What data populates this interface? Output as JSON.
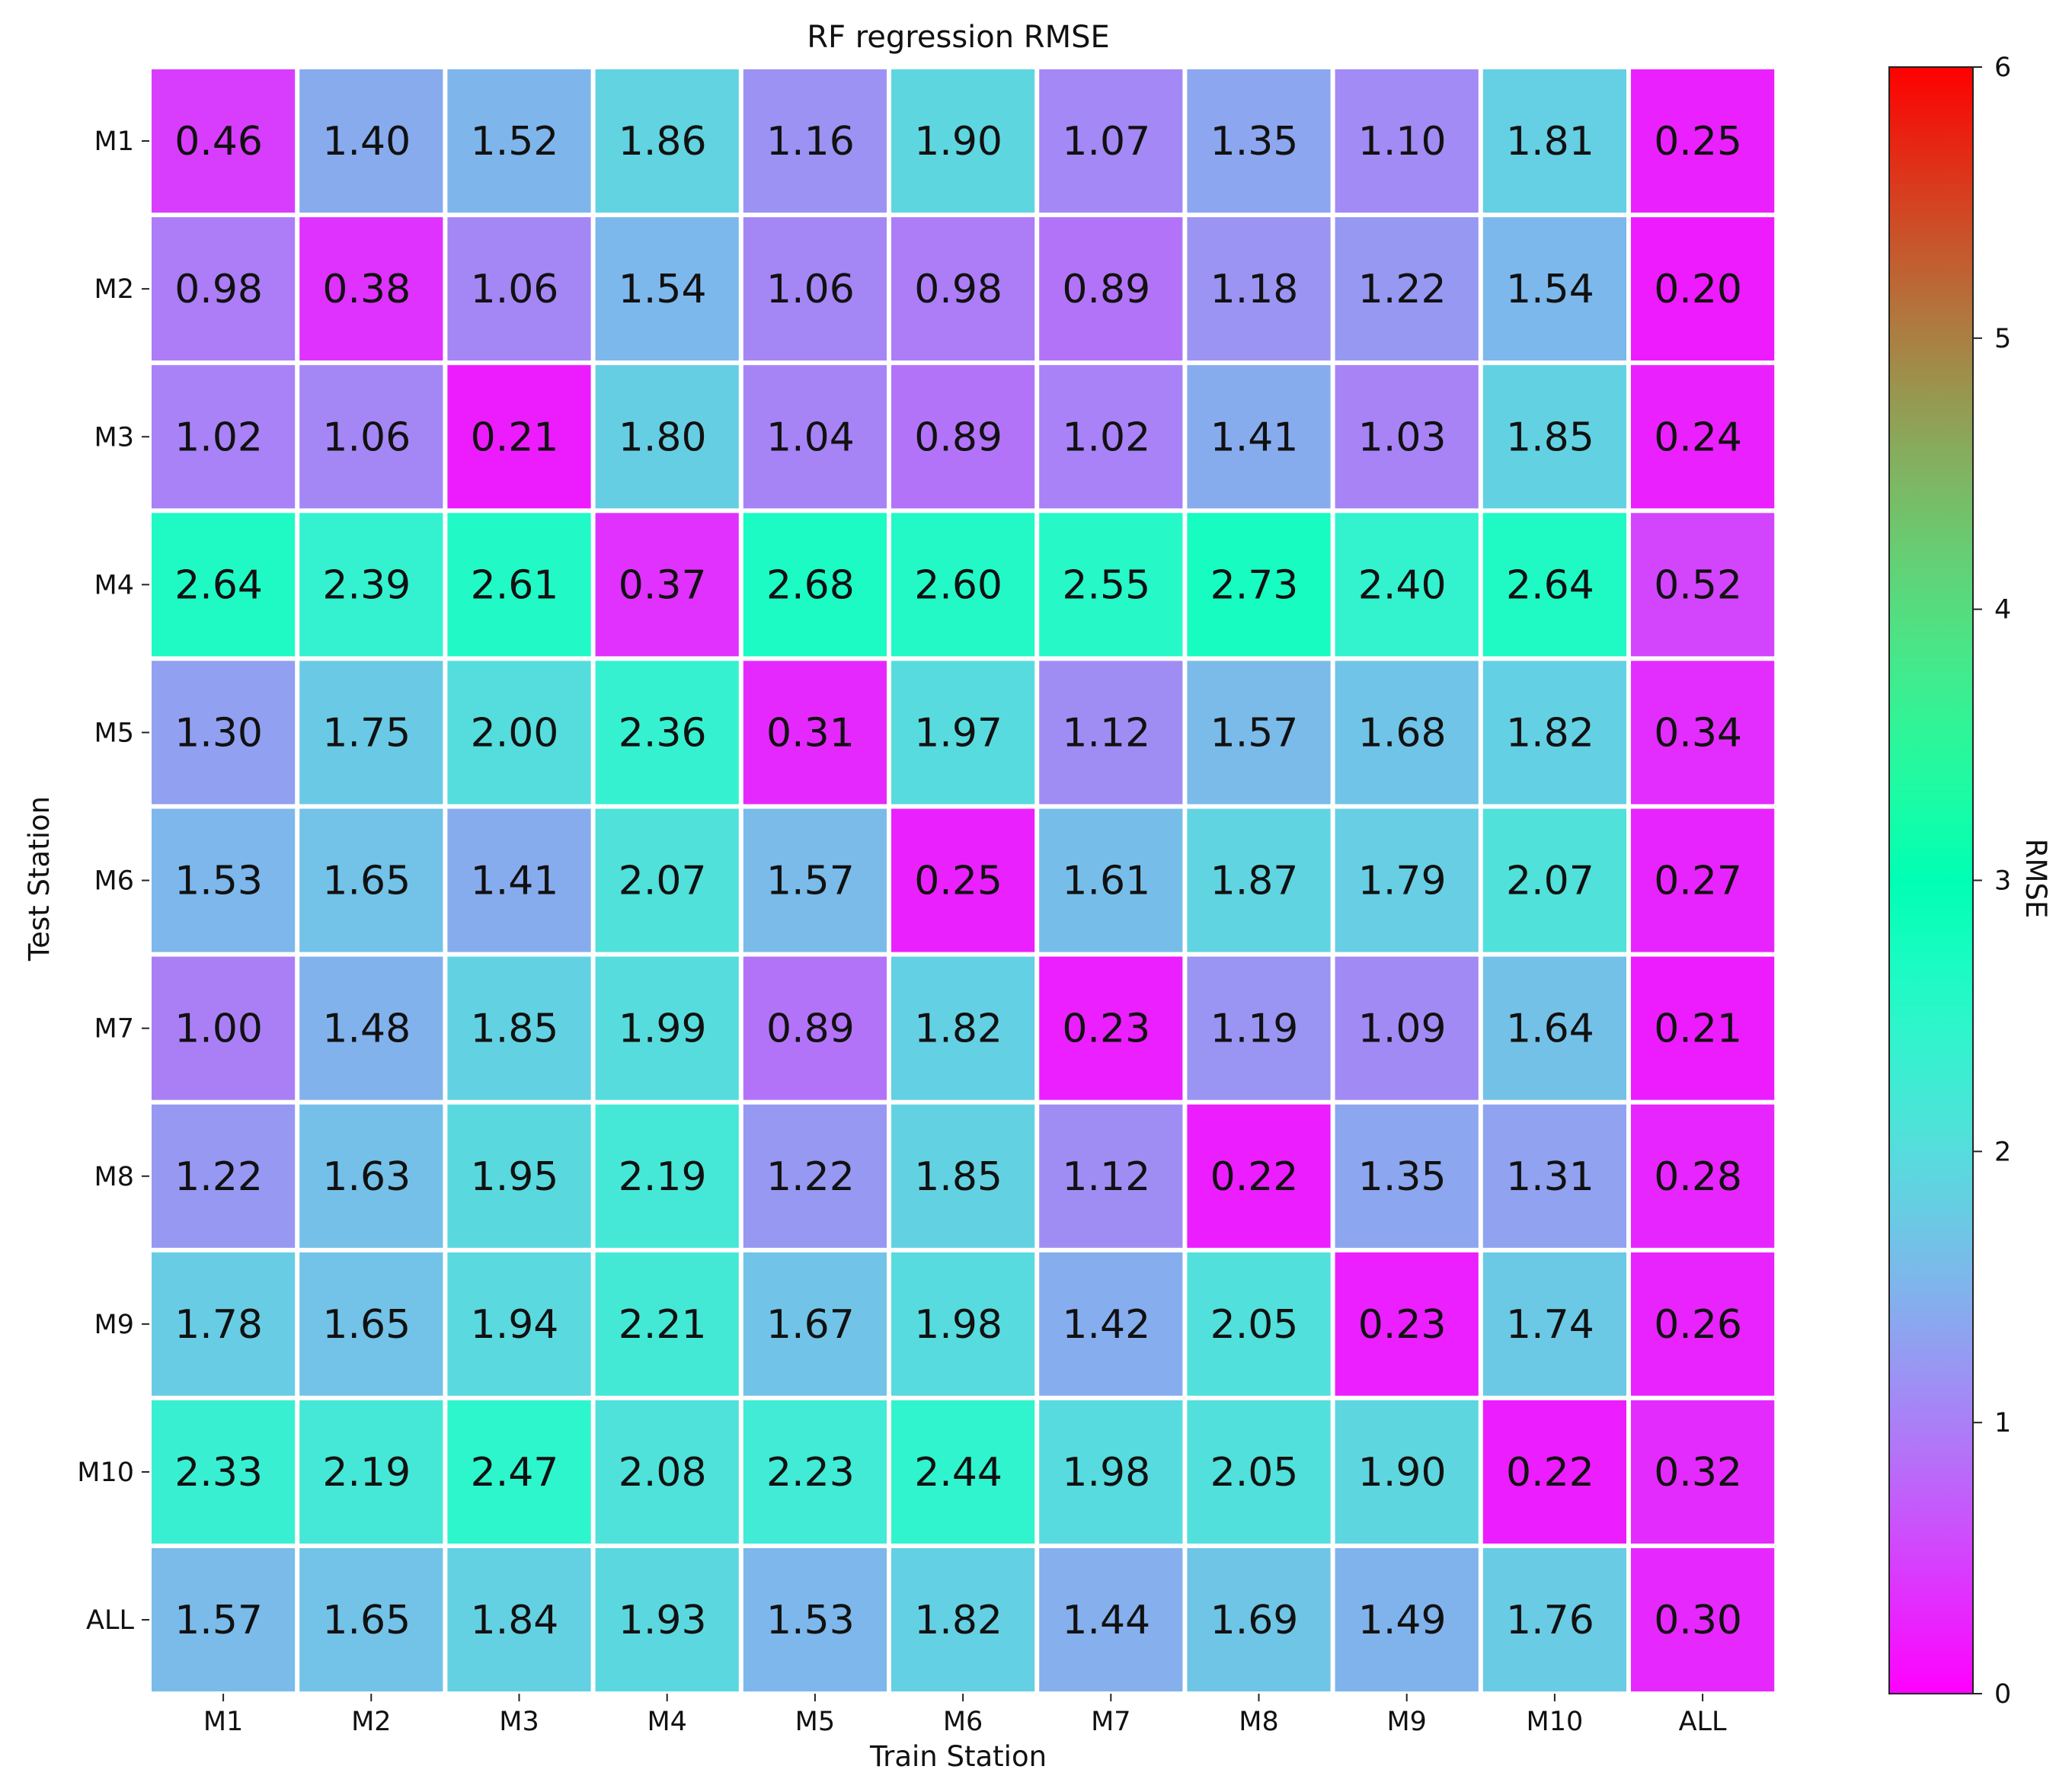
{
  "chart_data": {
    "type": "heatmap",
    "title": "RF regression RMSE",
    "xlabel": "Train Station",
    "ylabel": "Test Station",
    "colorbar_label": "RMSE",
    "colormap": "rainbow",
    "vmin": 0,
    "vmax": 6,
    "colorbar_ticks": [
      "0",
      "1",
      "2",
      "3",
      "4",
      "5",
      "6"
    ],
    "x_categories": [
      "M1",
      "M2",
      "M3",
      "M4",
      "M5",
      "M6",
      "M7",
      "M8",
      "M9",
      "M10",
      "ALL"
    ],
    "y_categories": [
      "M1",
      "M2",
      "M3",
      "M4",
      "M5",
      "M6",
      "M7",
      "M8",
      "M9",
      "M10",
      "ALL"
    ],
    "values": [
      [
        0.46,
        1.4,
        1.52,
        1.86,
        1.16,
        1.9,
        1.07,
        1.35,
        1.1,
        1.81,
        0.25
      ],
      [
        0.98,
        0.38,
        1.06,
        1.54,
        1.06,
        0.98,
        0.89,
        1.18,
        1.22,
        1.54,
        0.2
      ],
      [
        1.02,
        1.06,
        0.21,
        1.8,
        1.04,
        0.89,
        1.02,
        1.41,
        1.03,
        1.85,
        0.24
      ],
      [
        2.64,
        2.39,
        2.61,
        0.37,
        2.68,
        2.6,
        2.55,
        2.73,
        2.4,
        2.64,
        0.52
      ],
      [
        1.3,
        1.75,
        2.0,
        2.36,
        0.31,
        1.97,
        1.12,
        1.57,
        1.68,
        1.82,
        0.34
      ],
      [
        1.53,
        1.65,
        1.41,
        2.07,
        1.57,
        0.25,
        1.61,
        1.87,
        1.79,
        2.07,
        0.27
      ],
      [
        1.0,
        1.48,
        1.85,
        1.99,
        0.89,
        1.82,
        0.23,
        1.19,
        1.09,
        1.64,
        0.21
      ],
      [
        1.22,
        1.63,
        1.95,
        2.19,
        1.22,
        1.85,
        1.12,
        0.22,
        1.35,
        1.31,
        0.28
      ],
      [
        1.78,
        1.65,
        1.94,
        2.21,
        1.67,
        1.98,
        1.42,
        2.05,
        0.23,
        1.74,
        0.26
      ],
      [
        2.33,
        2.19,
        2.47,
        2.08,
        2.23,
        2.44,
        1.98,
        2.05,
        1.9,
        0.22,
        0.32
      ],
      [
        1.57,
        1.65,
        1.84,
        1.93,
        1.53,
        1.82,
        1.44,
        1.69,
        1.49,
        1.76,
        0.3
      ]
    ],
    "value_format": "2 decimals",
    "grid": false,
    "legend": "colorbar-right"
  }
}
